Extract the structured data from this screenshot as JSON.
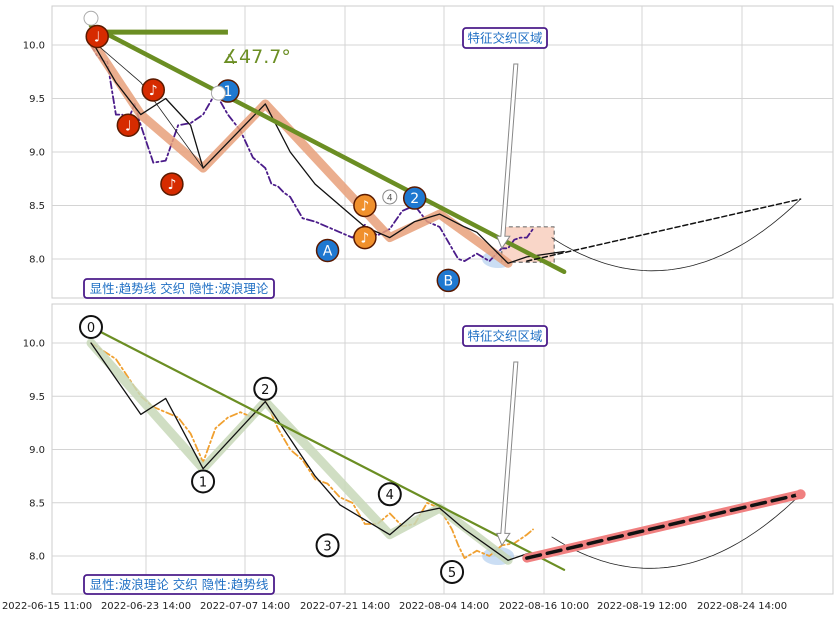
{
  "chart_data": [
    {
      "type": "line",
      "panel": "top",
      "ylim": [
        7.65,
        10.35
      ],
      "yticks": [
        "8.0",
        "8.5",
        "9.0",
        "9.5",
        "10.0"
      ],
      "grid": true,
      "legend_box": "显性:趋势线 交织 隐性:波浪理论",
      "region_label": "特征交织区域",
      "angle_label": "∡47.7°",
      "series": [
        {
          "style": "dashdot-purple",
          "x": [
            0,
            0.5,
            1,
            1.3,
            2,
            2.5,
            3,
            3.5,
            4,
            5,
            6,
            7,
            8,
            9,
            10,
            11,
            12,
            13,
            14,
            14.5,
            15,
            15.5,
            16,
            17,
            18,
            19,
            20,
            21,
            22,
            23,
            24,
            25,
            26,
            27,
            28,
            29,
            29.5,
            30,
            31,
            32,
            33,
            33.5,
            34,
            34.5,
            35,
            35.5
          ],
          "y": [
            10.0,
            9.9,
            9.85,
            9.85,
            9.35,
            9.35,
            9.3,
            9.45,
            9.25,
            8.9,
            8.92,
            9.25,
            9.27,
            9.35,
            9.55,
            9.35,
            9.2,
            8.95,
            8.85,
            8.7,
            8.68,
            8.62,
            8.58,
            8.38,
            8.35,
            8.3,
            8.25,
            8.2,
            8.32,
            8.22,
            8.28,
            8.45,
            8.5,
            8.35,
            8.3,
            8.1,
            8.0,
            7.98,
            8.05,
            7.98,
            8.1,
            8.1,
            8.18,
            8.2,
            8.2,
            8.28
          ]
        },
        {
          "style": "wave-thick",
          "x": [
            0,
            4,
            9,
            14,
            24,
            28,
            33.5
          ],
          "y": [
            10.05,
            9.35,
            8.85,
            9.45,
            8.2,
            8.42,
            7.96
          ]
        },
        {
          "style": "close-black",
          "x": [
            0,
            2,
            4,
            6,
            8,
            9,
            14,
            16,
            18,
            20,
            22,
            24,
            26,
            28,
            30,
            31,
            33.5,
            35,
            38
          ],
          "y": [
            10.05,
            9.65,
            9.35,
            9.5,
            9.25,
            8.85,
            9.45,
            9.0,
            8.7,
            8.5,
            8.3,
            8.2,
            8.35,
            8.42,
            8.3,
            8.25,
            7.96,
            8.02,
            8.07
          ]
        },
        {
          "style": "thin-black",
          "x": [
            0,
            4,
            9
          ],
          "y": [
            10.05,
            9.65,
            8.85
          ]
        },
        {
          "style": "trend-olive",
          "x": [
            0,
            38
          ],
          "y": [
            10.18,
            7.88
          ]
        },
        {
          "style": "dash-forecast",
          "x": [
            35,
            57
          ],
          "y": [
            7.98,
            8.56
          ]
        }
      ],
      "horizontal_line": {
        "x": [
          1.2,
          11
        ],
        "y": 10.12
      },
      "curve": {
        "x": [
          37,
          48,
          57
        ],
        "y": [
          8.2,
          7.93,
          8.56
        ]
      },
      "annotations": [
        {
          "label": "♩",
          "x": 0.5,
          "y": 10.08,
          "color": "#d62b00"
        },
        {
          "label": "♩",
          "x": 3,
          "y": 9.25,
          "color": "#d62b00"
        },
        {
          "label": "♪",
          "x": 5,
          "y": 9.58,
          "color": "#d62b00"
        },
        {
          "label": "♪",
          "x": 6.5,
          "y": 8.7,
          "color": "#d62b00"
        },
        {
          "label": "1",
          "x": 11,
          "y": 9.57,
          "color": "#1f78d0"
        },
        {
          "label": "A",
          "x": 19,
          "y": 8.08,
          "color": "#1f78d0"
        },
        {
          "label": "♪",
          "x": 22,
          "y": 8.5,
          "color": "#f0902c"
        },
        {
          "label": "♪",
          "x": 22,
          "y": 8.2,
          "color": "#f0902c"
        },
        {
          "label": "2",
          "x": 26,
          "y": 8.57,
          "color": "#1f78d0"
        },
        {
          "label": "B",
          "x": 28.7,
          "y": 7.8,
          "color": "#1f78d0"
        },
        {
          "label": "4",
          "x": 24,
          "y": 8.58,
          "color": "#ffffff"
        }
      ]
    },
    {
      "type": "line",
      "panel": "bottom",
      "ylim": [
        7.65,
        10.35
      ],
      "yticks": [
        "8.0",
        "8.5",
        "9.0",
        "9.5",
        "10.0"
      ],
      "grid": true,
      "legend_box": "显性:波浪理论 交织 隐性:趋势线",
      "region_label": "特征交织区域",
      "xticks": [
        "2022-06-15 11:00",
        "2022-06-23 14:00",
        "2022-07-07 14:00",
        "2022-07-21 14:00",
        "2022-08-04 14:00",
        "2022-08-16 10:00",
        "2022-08-19 12:00",
        "2022-08-24 14:00"
      ],
      "series": [
        {
          "style": "dashdot-orange",
          "x": [
            0,
            2,
            4,
            5,
            6,
            7,
            8,
            9,
            10,
            11,
            12,
            13,
            14,
            15,
            16,
            17,
            18,
            19,
            20,
            21,
            22,
            23,
            24,
            25,
            26,
            27,
            28,
            29,
            29.5,
            30,
            31,
            32,
            33,
            34,
            35,
            35.5
          ],
          "y": [
            10.0,
            9.85,
            9.5,
            9.4,
            9.35,
            9.3,
            9.15,
            8.88,
            9.2,
            9.3,
            9.35,
            9.3,
            9.47,
            9.2,
            9.0,
            8.9,
            8.72,
            8.68,
            8.55,
            8.5,
            8.3,
            8.3,
            8.4,
            8.28,
            8.3,
            8.5,
            8.45,
            8.25,
            8.1,
            7.98,
            8.05,
            8.0,
            8.1,
            8.12,
            8.2,
            8.25
          ]
        },
        {
          "style": "wave-thick",
          "x": [
            0,
            9,
            14,
            24,
            28,
            33.5
          ],
          "y": [
            10.0,
            8.82,
            9.45,
            8.2,
            8.45,
            7.96
          ]
        },
        {
          "style": "close-black",
          "x": [
            0,
            4,
            6,
            9,
            14,
            18,
            20,
            24,
            26,
            28,
            30,
            33.5,
            35,
            38
          ],
          "y": [
            10.0,
            9.33,
            9.48,
            8.82,
            9.45,
            8.75,
            8.48,
            8.2,
            8.4,
            8.45,
            8.25,
            7.96,
            8.02,
            8.05
          ]
        },
        {
          "style": "trend-olive",
          "x": [
            0,
            38
          ],
          "y": [
            10.15,
            7.87
          ]
        },
        {
          "style": "forecast-pink",
          "x": [
            35,
            57
          ],
          "y": [
            7.98,
            8.58
          ]
        },
        {
          "style": "dash-forecast",
          "x": [
            35,
            57
          ],
          "y": [
            7.98,
            8.58
          ]
        }
      ],
      "curve": {
        "x": [
          37,
          48,
          57
        ],
        "y": [
          8.18,
          7.93,
          8.58
        ]
      },
      "annotations": [
        {
          "label": "0",
          "x": 0,
          "y": 10.15
        },
        {
          "label": "1",
          "x": 9,
          "y": 8.7
        },
        {
          "label": "2",
          "x": 14,
          "y": 9.57
        },
        {
          "label": "3",
          "x": 19,
          "y": 8.1
        },
        {
          "label": "4",
          "x": 24,
          "y": 8.58
        },
        {
          "label": "5",
          "x": 29,
          "y": 7.85
        }
      ]
    }
  ]
}
